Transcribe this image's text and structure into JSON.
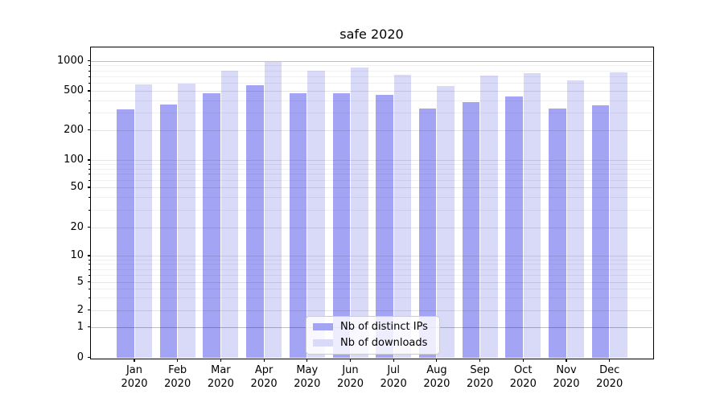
{
  "chart_data": {
    "type": "bar",
    "title": "safe 2020",
    "xlabel": "",
    "ylabel": "",
    "yscale": "symlog",
    "grid": true,
    "legend_position": "lower-center",
    "ylim": [
      0,
      1400
    ],
    "yticks": [
      0,
      1,
      2,
      5,
      10,
      20,
      50,
      100,
      200,
      500,
      1000
    ],
    "categories": [
      {
        "month": "Jan",
        "year": "2020"
      },
      {
        "month": "Feb",
        "year": "2020"
      },
      {
        "month": "Mar",
        "year": "2020"
      },
      {
        "month": "Apr",
        "year": "2020"
      },
      {
        "month": "May",
        "year": "2020"
      },
      {
        "month": "Jun",
        "year": "2020"
      },
      {
        "month": "Jul",
        "year": "2020"
      },
      {
        "month": "Aug",
        "year": "2020"
      },
      {
        "month": "Sep",
        "year": "2020"
      },
      {
        "month": "Oct",
        "year": "2020"
      },
      {
        "month": "Nov",
        "year": "2020"
      },
      {
        "month": "Dec",
        "year": "2020"
      }
    ],
    "series": [
      {
        "name": "Nb of distinct IPs",
        "color": "#a4a4f4",
        "values": [
          325,
          365,
          475,
          565,
          470,
          475,
          455,
          330,
          385,
          435,
          330,
          355
        ]
      },
      {
        "name": "Nb of downloads",
        "color": "#d9d9f8",
        "values": [
          575,
          595,
          800,
          965,
          790,
          860,
          720,
          560,
          715,
          750,
          635,
          760
        ]
      }
    ]
  }
}
